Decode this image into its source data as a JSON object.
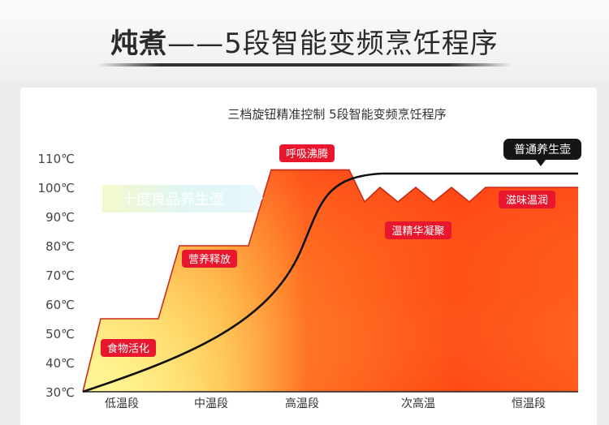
{
  "header": {
    "title_bold": "炖煮",
    "title_dash": "——",
    "title_rest": "5段智能变频烹饪程序"
  },
  "colors": {
    "orange": "#ff5a1f",
    "red_top": "#ff3b1a",
    "yellow": "#fff46a",
    "curve": "#111111",
    "tag_bg": "#e8172e",
    "tag_outline": "#cc2a1a"
  },
  "chart_data": {
    "type": "area",
    "title": "三档旋钮精准控制  5段智能变频烹饪程序",
    "ylim": [
      30,
      110
    ],
    "yticks": [
      30,
      40,
      50,
      60,
      70,
      80,
      90,
      100,
      110
    ],
    "ytick_labels": [
      "30℃",
      "40℃",
      "50℃",
      "60℃",
      "70℃",
      "80℃",
      "90℃",
      "100℃",
      "110℃"
    ],
    "x_categories": [
      "低温段",
      "中温段",
      "高温段",
      "次高温",
      "恒温段"
    ],
    "stage_temperatures": [
      {
        "stage": "低温段",
        "plateau": 55
      },
      {
        "stage": "中温段",
        "plateau": 80
      },
      {
        "stage": "高温段",
        "plateau": 106
      },
      {
        "stage": "次高温",
        "range": [
          95,
          100
        ]
      },
      {
        "stage": "恒温段",
        "plateau": 100
      }
    ],
    "series": [
      {
        "name": "普通养生壶",
        "type": "line"
      }
    ],
    "legend_tag": "十度良品养生壶",
    "stage_labels": [
      "食物活化",
      "营养释放",
      "呼吸沸腾",
      "温精华凝聚",
      "滋味温润"
    ],
    "grid": false
  }
}
